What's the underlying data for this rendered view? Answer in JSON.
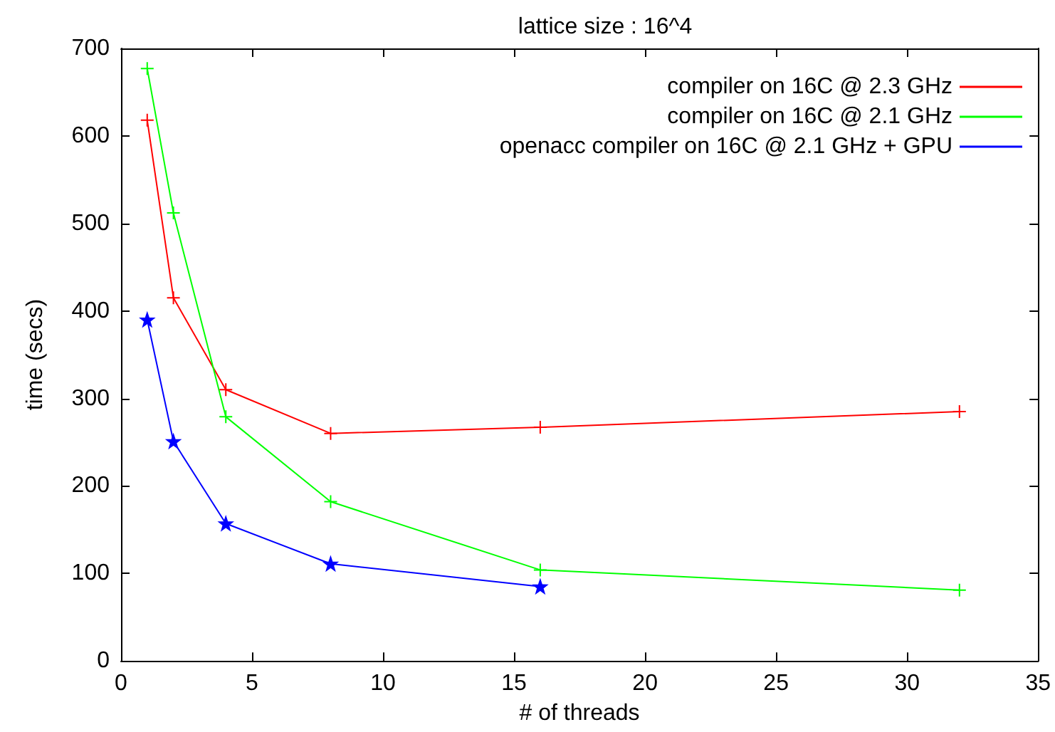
{
  "chart_data": {
    "type": "line",
    "title": "lattice size : 16^4",
    "xlabel": "# of threads",
    "ylabel": "time (secs)",
    "xlim": [
      0,
      35
    ],
    "xticks": [
      0,
      5,
      10,
      15,
      20,
      25,
      30,
      35
    ],
    "ylim": [
      0,
      700
    ],
    "yticks": [
      0,
      100,
      200,
      300,
      400,
      500,
      600,
      700
    ],
    "grid": false,
    "legend": "top right",
    "line_style": "solid",
    "series": [
      {
        "name": "compiler on 16C @ 2.3 GHz",
        "color": "#ff0000",
        "marker": "cross",
        "x": [
          1,
          2,
          4,
          8,
          16,
          32
        ],
        "values": [
          618,
          415,
          310,
          260,
          267,
          285
        ]
      },
      {
        "name": "compiler on 16C @ 2.1 GHz",
        "color": "#00ff00",
        "marker": "cross",
        "x": [
          1,
          2,
          4,
          8,
          16,
          32
        ],
        "values": [
          677,
          512,
          279,
          182,
          104,
          81
        ]
      },
      {
        "name": "openacc compiler on 16C @ 2.1 GHz + GPU",
        "color": "#0000ff",
        "marker": "star",
        "x": [
          1,
          2,
          4,
          8,
          16
        ],
        "values": [
          390,
          251,
          157,
          111,
          85
        ]
      }
    ]
  }
}
